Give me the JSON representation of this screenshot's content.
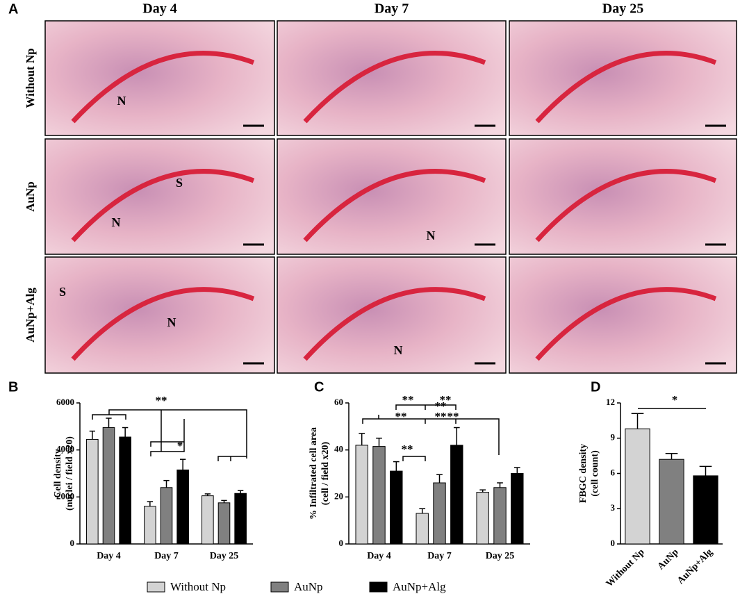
{
  "panel_labels": [
    "A",
    "B",
    "C",
    "D"
  ],
  "image_grid": {
    "columns": [
      "Day 4",
      "Day 7",
      "Day 25"
    ],
    "rows": [
      "Without Np",
      "AuNp",
      "AuNp+Alg"
    ],
    "annotations": [
      "N",
      "S",
      "N",
      "N",
      "S",
      "N",
      "N"
    ]
  },
  "chart_data": [
    {
      "type": "bar",
      "ylabel": [
        "Cell density",
        "(nuclei / field x20)"
      ],
      "categories": [
        "Day 4",
        "Day 7",
        "Day 25"
      ],
      "series": [
        {
          "name": "Without Np",
          "color": "#d3d3d3",
          "values": [
            4450,
            1600,
            2050
          ],
          "errors": [
            350,
            200,
            80
          ]
        },
        {
          "name": "AuNp",
          "color": "#808080",
          "values": [
            4950,
            2400,
            1750
          ],
          "errors": [
            400,
            300,
            100
          ]
        },
        {
          "name": "AuNp+Alg",
          "color": "#000000",
          "values": [
            4550,
            3150,
            2150
          ],
          "errors": [
            400,
            450,
            120
          ]
        }
      ],
      "ylim": [
        0,
        6000
      ],
      "yticks": [
        0,
        2000,
        4000,
        6000
      ],
      "annotations": [
        "**",
        "*"
      ]
    },
    {
      "type": "bar",
      "ylabel": [
        "% Infiltrated cell area",
        "(cell / field x20)"
      ],
      "categories": [
        "Day 4",
        "Day 7",
        "Day 25"
      ],
      "series": [
        {
          "name": "Without Np",
          "color": "#d3d3d3",
          "values": [
            42,
            13,
            22
          ],
          "errors": [
            5,
            2,
            1
          ]
        },
        {
          "name": "AuNp",
          "color": "#808080",
          "values": [
            41.5,
            26,
            24
          ],
          "errors": [
            3.5,
            3.5,
            2
          ]
        },
        {
          "name": "AuNp+Alg",
          "color": "#000000",
          "values": [
            31,
            42,
            30
          ],
          "errors": [
            4,
            7.5,
            2.5
          ]
        }
      ],
      "ylim": [
        0,
        60
      ],
      "yticks": [
        0,
        20,
        40,
        60
      ],
      "annotations": [
        "**",
        "**",
        "**",
        "**",
        "**",
        "**",
        "**"
      ]
    },
    {
      "type": "bar",
      "ylabel": [
        "FBGC density",
        "(cell count)"
      ],
      "categories": [
        "Without Np",
        "AuNp",
        "AuNp+Alg"
      ],
      "values": [
        9.8,
        7.2,
        5.8
      ],
      "errors": [
        1.3,
        0.5,
        0.8
      ],
      "colors": [
        "#d3d3d3",
        "#808080",
        "#000000"
      ],
      "ylim": [
        0,
        12
      ],
      "yticks": [
        0,
        3,
        6,
        9,
        12
      ],
      "annotations": [
        "*"
      ]
    }
  ]
}
